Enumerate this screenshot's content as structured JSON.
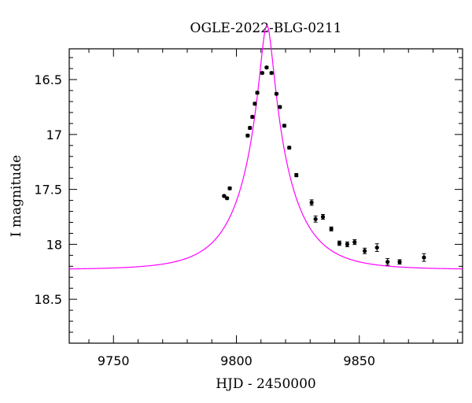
{
  "chart_data": {
    "type": "scatter",
    "title": "OGLE-2022-BLG-0211",
    "xlabel": "HJD - 2450000",
    "ylabel": "I magnitude",
    "xlim": [
      9732,
      9892
    ],
    "ylim": [
      18.9,
      16.22
    ],
    "y_inverted": true,
    "x_ticks": [
      9750,
      9800,
      9850
    ],
    "y_ticks": [
      16.5,
      17,
      17.5,
      18,
      18.5
    ],
    "x_tick_labels": [
      "9750",
      "9800",
      "9850"
    ],
    "y_tick_labels": [
      "16.5",
      "17",
      "17.5",
      "18",
      "18.5"
    ],
    "grid": false,
    "colors": {
      "model": "#ff00ff",
      "points": "#000000"
    },
    "model": {
      "t0": 9812.4,
      "u0": 0.13,
      "tE": 19.5,
      "baseline_mag": 18.23,
      "blend_fraction": 1.0
    },
    "series": [
      {
        "x": [
          9795.0,
          9796.2,
          9797.3,
          9804.6,
          9805.5,
          9806.5,
          9807.5,
          9808.5,
          9810.5,
          9812.3,
          9814.3,
          9816.3,
          9817.7,
          9819.5,
          9821.5,
          9824.4,
          9830.6,
          9832.2,
          9835.2,
          9838.6,
          9841.9,
          9845.1,
          9848.1,
          9852.2,
          9857.2,
          9861.5,
          9866.4,
          9876.3
        ],
        "y": [
          17.56,
          17.58,
          17.49,
          17.01,
          16.94,
          16.84,
          16.72,
          16.62,
          16.44,
          16.39,
          16.44,
          16.63,
          16.75,
          16.92,
          17.12,
          17.37,
          17.62,
          17.77,
          17.75,
          17.86,
          17.99,
          18.0,
          17.98,
          18.06,
          18.03,
          18.16,
          18.16,
          18.12
        ],
        "yerr": [
          0.01,
          0.01,
          0.012,
          0.012,
          0.012,
          0.012,
          0.012,
          0.012,
          0.01,
          0.01,
          0.01,
          0.01,
          0.012,
          0.012,
          0.012,
          0.015,
          0.025,
          0.028,
          0.022,
          0.018,
          0.02,
          0.022,
          0.022,
          0.025,
          0.035,
          0.03,
          0.02,
          0.035
        ]
      }
    ]
  }
}
